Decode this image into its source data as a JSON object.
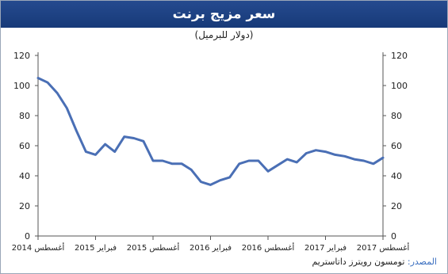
{
  "colors": {
    "header_bg": "#1f4488",
    "line": "#4a6fb5",
    "axis": "#555555",
    "text": "#222222"
  },
  "chart_data": {
    "type": "line",
    "title": "سعر مزيج برنت",
    "subtitle": "(دولار للبرميل)",
    "source_label": "المصدر:",
    "source_text": "تومسون رويترز داتاستريم",
    "ylim": [
      0,
      120
    ],
    "yticks": [
      0,
      20,
      40,
      60,
      80,
      100,
      120
    ],
    "y_axes": "both",
    "grid": false,
    "x_ticks": [
      {
        "label": "أغسطس 2014",
        "x": 0
      },
      {
        "label": "فبراير 2015",
        "x": 6
      },
      {
        "label": "أغسطس 2015",
        "x": 12
      },
      {
        "label": "فبراير 2016",
        "x": 18
      },
      {
        "label": "أغسطس 2016",
        "x": 24
      },
      {
        "label": "فبراير 2017",
        "x": 30
      },
      {
        "label": "أغسطس 2017",
        "x": 36
      }
    ],
    "x_range": [
      0,
      36
    ],
    "series": [
      {
        "x": [
          0,
          1,
          2,
          3,
          4,
          5,
          6,
          7,
          8,
          9,
          10,
          11,
          12,
          13,
          14,
          15,
          16,
          17,
          18,
          19,
          20,
          21,
          22,
          23,
          24,
          25,
          26,
          27,
          28,
          29,
          30,
          31,
          32,
          33,
          34,
          35,
          36
        ],
        "values": [
          105,
          102,
          95,
          85,
          70,
          56,
          54,
          61,
          56,
          66,
          65,
          63,
          50,
          50,
          48,
          48,
          44,
          36,
          34,
          37,
          39,
          48,
          50,
          50,
          43,
          47,
          51,
          49,
          55,
          57,
          56,
          54,
          53,
          51,
          50,
          48,
          52
        ]
      }
    ]
  }
}
